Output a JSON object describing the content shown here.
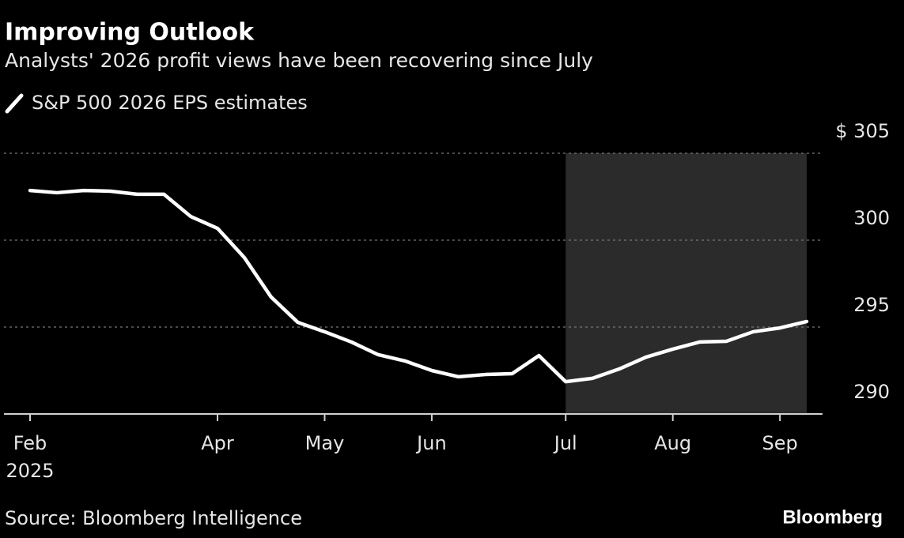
{
  "chart_data": {
    "type": "line",
    "title": "Improving Outlook",
    "subtitle": "Analysts' 2026 profit views have been recovering since July",
    "categories": [
      "Feb",
      null,
      null,
      null,
      null,
      null,
      null,
      "Apr",
      null,
      null,
      null,
      "May",
      null,
      null,
      null,
      "Jun",
      null,
      null,
      null,
      null,
      "Jul",
      null,
      null,
      null,
      "Aug",
      null,
      null,
      null,
      "Sep",
      null
    ],
    "x_year": "2025",
    "series": [
      {
        "name": "S&P 500 2026 EPS estimates",
        "color": "#ffffff",
        "values": [
          302.86,
          302.73,
          302.86,
          302.82,
          302.64,
          302.64,
          301.36,
          300.68,
          299.0,
          296.73,
          295.27,
          294.73,
          294.14,
          293.41,
          293.05,
          292.5,
          292.14,
          292.27,
          292.32,
          293.36,
          291.86,
          292.05,
          292.59,
          293.27,
          293.73,
          294.14,
          294.18,
          294.73,
          294.95,
          295.32
        ]
      }
    ],
    "ylim": [
      290,
      305
    ],
    "yticks": [
      290,
      295,
      300,
      {
        "value": 305,
        "label": "$ 305"
      }
    ],
    "grid": true,
    "shade_from_category": 20,
    "shade_color": "#2b2b2b",
    "source": "Source: Bloomberg Intelligence",
    "brand": "Bloomberg"
  }
}
